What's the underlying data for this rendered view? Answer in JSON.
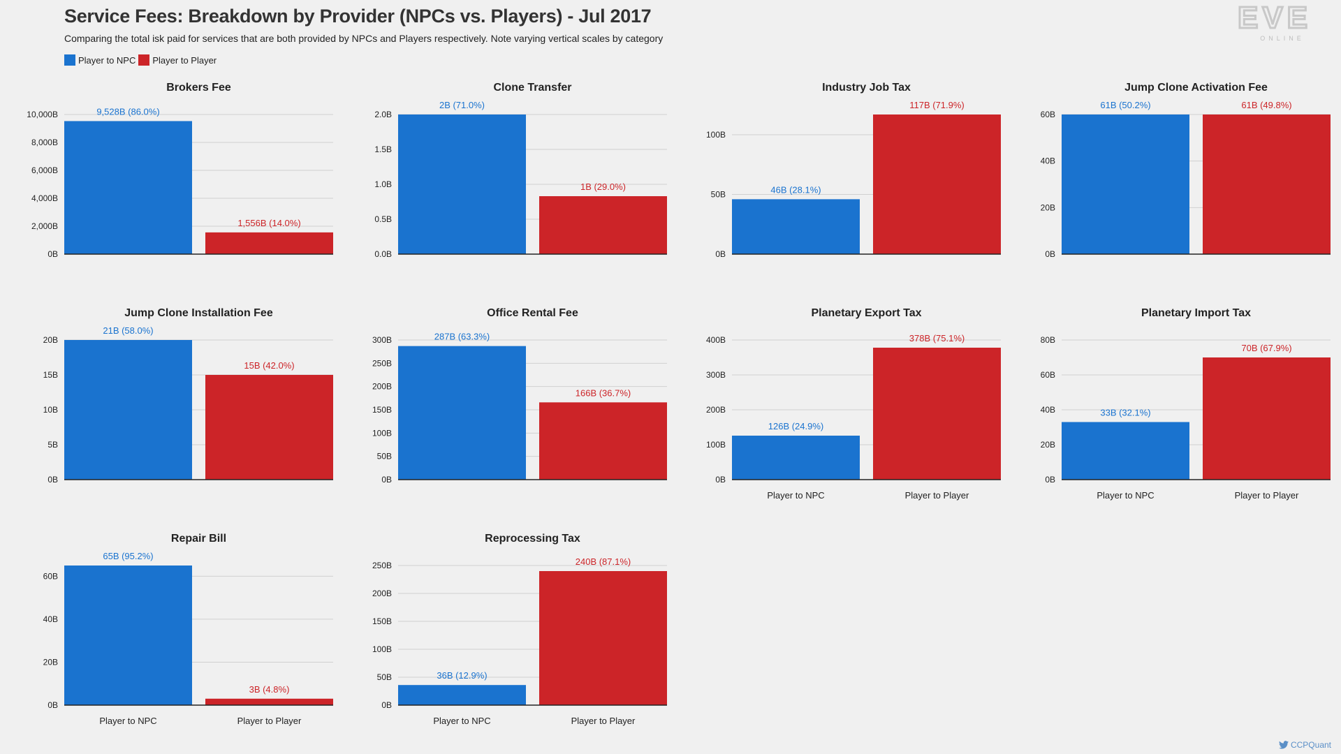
{
  "header": {
    "title": "Service Fees: Breakdown by Provider (NPCs vs. Players) - Jul 2017",
    "subtitle": "Comparing the total isk paid for services that are both provided by NPCs and Players respectively. Note varying vertical scales by category"
  },
  "legend": [
    {
      "label": "Player to NPC",
      "color": "#1a73cf"
    },
    {
      "label": "Player to Player",
      "color": "#cc2428"
    }
  ],
  "logo": {
    "line1": "EVE",
    "line2": "ONLINE"
  },
  "credit": {
    "handle": "CCPQuant",
    "icon": "twitter-bird-icon"
  },
  "colors": {
    "npc": "#1a73cf",
    "player": "#cc2428",
    "grid": "#d0d0d0",
    "axis": "#222222"
  },
  "chart_data": [
    {
      "type": "bar",
      "title": "Brokers Fee",
      "categories": [
        "Player to NPC",
        "Player to Player"
      ],
      "values": [
        9528,
        1556
      ],
      "labels": [
        "9,528B (86.0%)",
        "1,556B (14.0%)"
      ],
      "ylim": [
        0,
        10000
      ],
      "yticks": [
        0,
        2000,
        4000,
        6000,
        8000,
        10000
      ],
      "ytick_labels": [
        "0B",
        "2,000B",
        "4,000B",
        "6,000B",
        "8,000B",
        "10,000B"
      ],
      "show_categories": false
    },
    {
      "type": "bar",
      "title": "Clone Transfer",
      "categories": [
        "Player to NPC",
        "Player to Player"
      ],
      "values": [
        2.04,
        0.83
      ],
      "labels": [
        "2B (71.0%)",
        "1B (29.0%)"
      ],
      "ylim": [
        0,
        2.0
      ],
      "yticks": [
        0,
        0.5,
        1.0,
        1.5,
        2.0
      ],
      "ytick_labels": [
        "0.0B",
        "0.5B",
        "1.0B",
        "1.5B",
        "2.0B"
      ],
      "show_categories": false
    },
    {
      "type": "bar",
      "title": "Industry Job Tax",
      "categories": [
        "Player to NPC",
        "Player to Player"
      ],
      "values": [
        46,
        117
      ],
      "labels": [
        "46B (28.1%)",
        "117B (71.9%)"
      ],
      "ylim": [
        0,
        117
      ],
      "yticks": [
        0,
        50,
        100
      ],
      "ytick_labels": [
        "0B",
        "50B",
        "100B"
      ],
      "show_categories": false
    },
    {
      "type": "bar",
      "title": "Jump Clone Activation Fee",
      "categories": [
        "Player to NPC",
        "Player to Player"
      ],
      "values": [
        61,
        61
      ],
      "labels": [
        "61B (50.2%)",
        "61B (49.8%)"
      ],
      "ylim": [
        0,
        60
      ],
      "yticks": [
        0,
        20,
        40,
        60
      ],
      "ytick_labels": [
        "0B",
        "20B",
        "40B",
        "60B"
      ],
      "show_categories": false
    },
    {
      "type": "bar",
      "title": "Jump Clone Installation Fee",
      "categories": [
        "Player to NPC",
        "Player to Player"
      ],
      "values": [
        21,
        15
      ],
      "labels": [
        "21B (58.0%)",
        "15B (42.0%)"
      ],
      "ylim": [
        0,
        20
      ],
      "yticks": [
        0,
        5,
        10,
        15,
        20
      ],
      "ytick_labels": [
        "0B",
        "5B",
        "10B",
        "15B",
        "20B"
      ],
      "show_categories": false
    },
    {
      "type": "bar",
      "title": "Office Rental Fee",
      "categories": [
        "Player to NPC",
        "Player to Player"
      ],
      "values": [
        287,
        166
      ],
      "labels": [
        "287B (63.3%)",
        "166B (36.7%)"
      ],
      "ylim": [
        0,
        300
      ],
      "yticks": [
        0,
        50,
        100,
        150,
        200,
        250,
        300
      ],
      "ytick_labels": [
        "0B",
        "50B",
        "100B",
        "150B",
        "200B",
        "250B",
        "300B"
      ],
      "show_categories": false
    },
    {
      "type": "bar",
      "title": "Planetary Export Tax",
      "categories": [
        "Player to NPC",
        "Player to Player"
      ],
      "values": [
        126,
        378
      ],
      "labels": [
        "126B (24.9%)",
        "378B (75.1%)"
      ],
      "ylim": [
        0,
        400
      ],
      "yticks": [
        0,
        100,
        200,
        300,
        400
      ],
      "ytick_labels": [
        "0B",
        "100B",
        "200B",
        "300B",
        "400B"
      ],
      "show_categories": true
    },
    {
      "type": "bar",
      "title": "Planetary Import Tax",
      "categories": [
        "Player to NPC",
        "Player to Player"
      ],
      "values": [
        33,
        70
      ],
      "labels": [
        "33B (32.1%)",
        "70B (67.9%)"
      ],
      "ylim": [
        0,
        80
      ],
      "yticks": [
        0,
        20,
        40,
        60,
        80
      ],
      "ytick_labels": [
        "0B",
        "20B",
        "40B",
        "60B",
        "80B"
      ],
      "show_categories": true
    },
    {
      "type": "bar",
      "title": "Repair Bill",
      "categories": [
        "Player to NPC",
        "Player to Player"
      ],
      "values": [
        65,
        3
      ],
      "labels": [
        "65B (95.2%)",
        "3B (4.8%)"
      ],
      "ylim": [
        0,
        65
      ],
      "yticks": [
        0,
        20,
        40,
        60
      ],
      "ytick_labels": [
        "0B",
        "20B",
        "40B",
        "60B"
      ],
      "show_categories": true
    },
    {
      "type": "bar",
      "title": "Reprocessing Tax",
      "categories": [
        "Player to NPC",
        "Player to Player"
      ],
      "values": [
        36,
        240
      ],
      "labels": [
        "36B (12.9%)",
        "240B (87.1%)"
      ],
      "ylim": [
        0,
        250
      ],
      "yticks": [
        0,
        50,
        100,
        150,
        200,
        250
      ],
      "ytick_labels": [
        "0B",
        "50B",
        "100B",
        "150B",
        "200B",
        "250B"
      ],
      "show_categories": true
    }
  ]
}
